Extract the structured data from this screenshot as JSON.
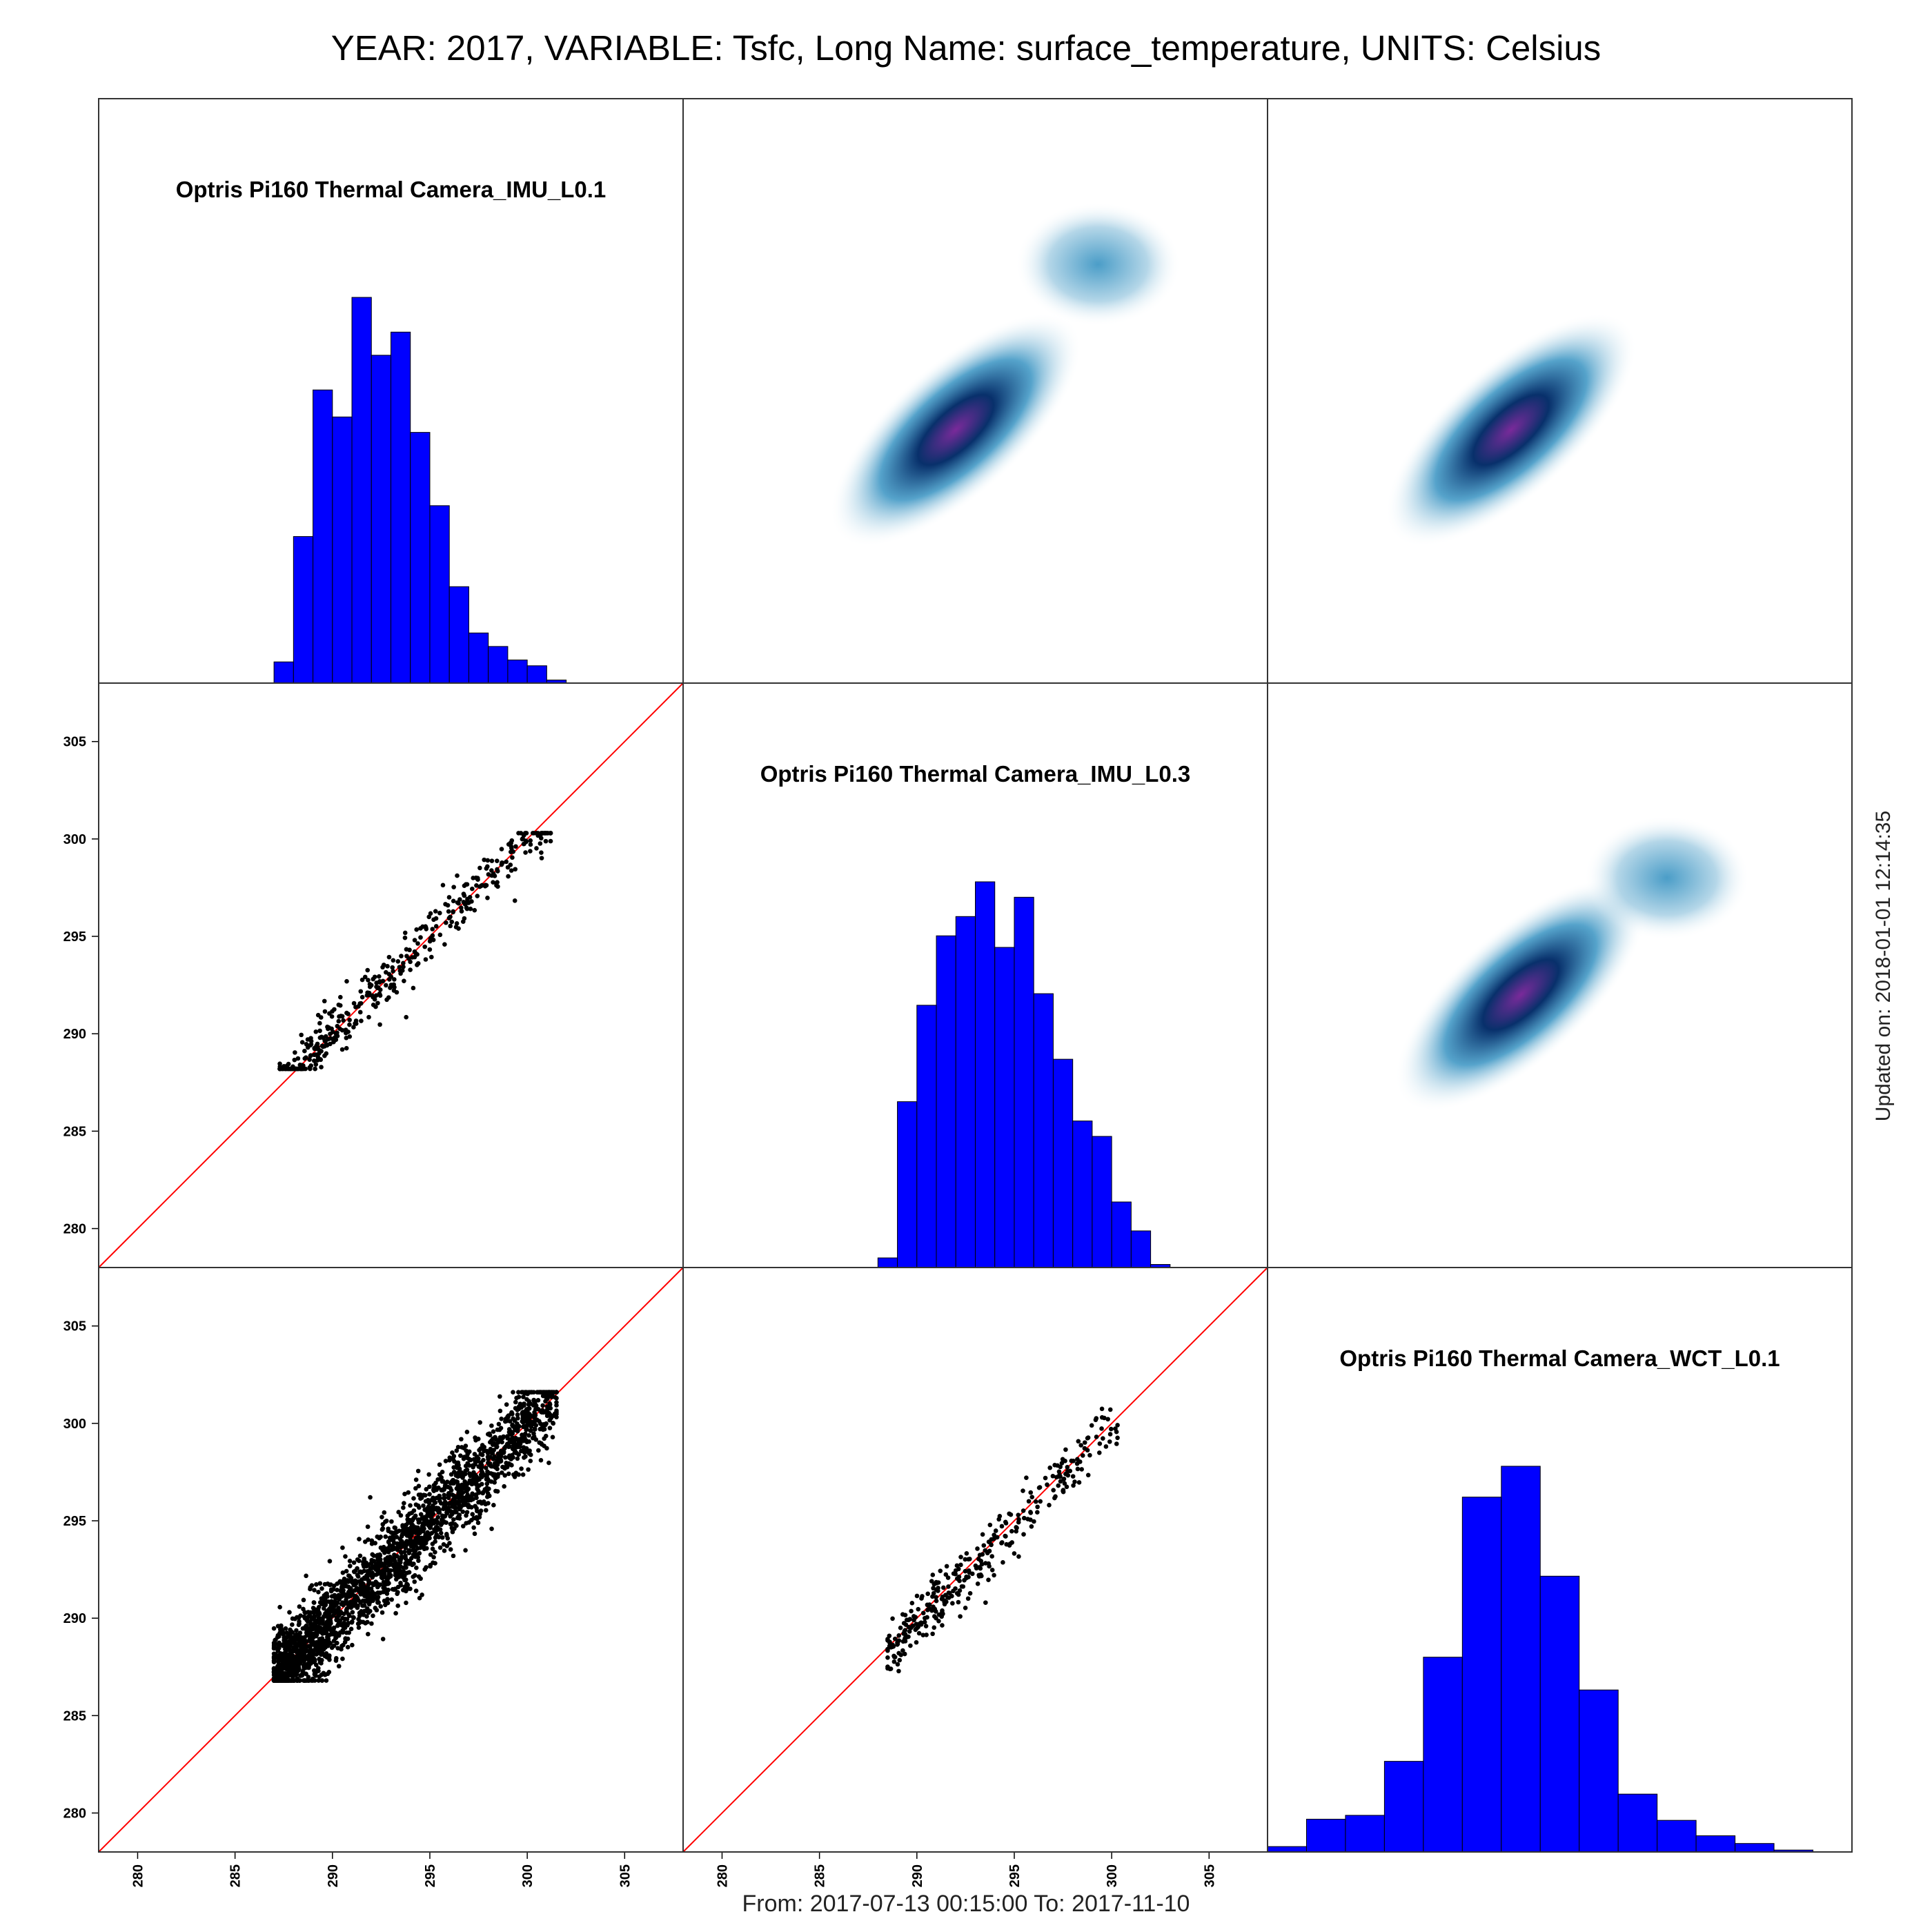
{
  "title": "YEAR: 2017, VARIABLE: Tsfc, Long Name: surface_temperature, UNITS: Celsius",
  "footer": "From: 2017-07-13 00:15:00 To: 2017-11-10",
  "updated": "Updated on: 2018-01-01 12:14:35",
  "colors": {
    "hist_fill": "#0000ff",
    "points": "#000000",
    "identity_line": "#ff0000",
    "density_low": "#ffffff",
    "density_mid": "#2b8cbe",
    "density_dark": "#08306b",
    "density_peak": "#7a2a9a"
  },
  "chart_data": {
    "type": "scatter-matrix",
    "variables": [
      "Optris Pi160 Thermal Camera_IMU_L0.1",
      "Optris Pi160 Thermal Camera_IMU_L0.3",
      "Optris Pi160 Thermal Camera_WCT_L0.1"
    ],
    "axis_range": [
      278,
      308
    ],
    "ticks": [
      280,
      285,
      290,
      295,
      300,
      305
    ],
    "tick_labels": [
      "280",
      "285",
      "290",
      "295",
      "300",
      "305"
    ],
    "histograms": [
      {
        "variable": "Optris Pi160 Thermal Camera_IMU_L0.1",
        "bin_width": 1.0,
        "bins": [
          {
            "x0": 287,
            "count": 55
          },
          {
            "x0": 288,
            "count": 380
          },
          {
            "x0": 289,
            "count": 760
          },
          {
            "x0": 290,
            "count": 690
          },
          {
            "x0": 291,
            "count": 1000
          },
          {
            "x0": 292,
            "count": 850
          },
          {
            "x0": 293,
            "count": 910
          },
          {
            "x0": 294,
            "count": 650
          },
          {
            "x0": 295,
            "count": 460
          },
          {
            "x0": 296,
            "count": 250
          },
          {
            "x0": 297,
            "count": 130
          },
          {
            "x0": 298,
            "count": 95
          },
          {
            "x0": 299,
            "count": 60
          },
          {
            "x0": 300,
            "count": 45
          },
          {
            "x0": 301,
            "count": 8
          }
        ]
      },
      {
        "variable": "Optris Pi160 Thermal Camera_IMU_L0.3",
        "bin_width": 1.0,
        "bins": [
          {
            "x0": 288,
            "count": 25
          },
          {
            "x0": 289,
            "count": 430
          },
          {
            "x0": 290,
            "count": 680
          },
          {
            "x0": 291,
            "count": 860
          },
          {
            "x0": 292,
            "count": 910
          },
          {
            "x0": 293,
            "count": 1000
          },
          {
            "x0": 294,
            "count": 830
          },
          {
            "x0": 295,
            "count": 960
          },
          {
            "x0": 296,
            "count": 710
          },
          {
            "x0": 297,
            "count": 540
          },
          {
            "x0": 298,
            "count": 380
          },
          {
            "x0": 299,
            "count": 340
          },
          {
            "x0": 300,
            "count": 170
          },
          {
            "x0": 301,
            "count": 95
          },
          {
            "x0": 302,
            "count": 8
          }
        ]
      },
      {
        "variable": "Optris Pi160 Thermal Camera_WCT_L0.1",
        "bin_width": 2.0,
        "bins": [
          {
            "x0": 278,
            "count": 14
          },
          {
            "x0": 280,
            "count": 85
          },
          {
            "x0": 282,
            "count": 95
          },
          {
            "x0": 284,
            "count": 235
          },
          {
            "x0": 286,
            "count": 505
          },
          {
            "x0": 288,
            "count": 920
          },
          {
            "x0": 290,
            "count": 1000
          },
          {
            "x0": 292,
            "count": 715
          },
          {
            "x0": 294,
            "count": 420
          },
          {
            "x0": 296,
            "count": 150
          },
          {
            "x0": 298,
            "count": 82
          },
          {
            "x0": 300,
            "count": 42
          },
          {
            "x0": 302,
            "count": 22
          },
          {
            "x0": 304,
            "count": 5
          }
        ]
      }
    ],
    "scatter_panels": [
      {
        "x_variable": "Optris Pi160 Thermal Camera_IMU_L0.1",
        "y_variable": "Optris Pi160 Thermal Camera_IMU_L0.3",
        "n_points": 420,
        "x_range": [
          287.3,
          301.2
        ],
        "y_range": [
          288.2,
          300.3
        ],
        "identity_line": true
      },
      {
        "x_variable": "Optris Pi160 Thermal Camera_IMU_L0.1",
        "y_variable": "Optris Pi160 Thermal Camera_WCT_L0.1",
        "n_points": 2400,
        "x_range": [
          287.0,
          301.5
        ],
        "y_range": [
          286.8,
          301.6
        ],
        "identity_line": true
      },
      {
        "x_variable": "Optris Pi160 Thermal Camera_IMU_L0.3",
        "y_variable": "Optris Pi160 Thermal Camera_WCT_L0.1",
        "n_points": 330,
        "x_range": [
          288.5,
          300.3
        ],
        "y_range": [
          286.9,
          301.5
        ],
        "identity_line": true
      }
    ],
    "density_panels": [
      {
        "x_variable": "Optris Pi160 Thermal Camera_IMU_L0.3",
        "y_variable": "Optris Pi160 Thermal Camera_IMU_L0.1",
        "peak": [
          292.0,
          291.0
        ],
        "secondary_mode": [
          299.3,
          299.5
        ]
      },
      {
        "x_variable": "Optris Pi160 Thermal Camera_WCT_L0.1",
        "y_variable": "Optris Pi160 Thermal Camera_IMU_L0.1",
        "peak": [
          290.5,
          291.0
        ],
        "secondary_mode": null
      },
      {
        "x_variable": "Optris Pi160 Thermal Camera_WCT_L0.1",
        "y_variable": "Optris Pi160 Thermal Camera_IMU_L0.3",
        "peak": [
          291.0,
          292.0
        ],
        "secondary_mode": [
          298.5,
          298.0
        ]
      }
    ]
  }
}
